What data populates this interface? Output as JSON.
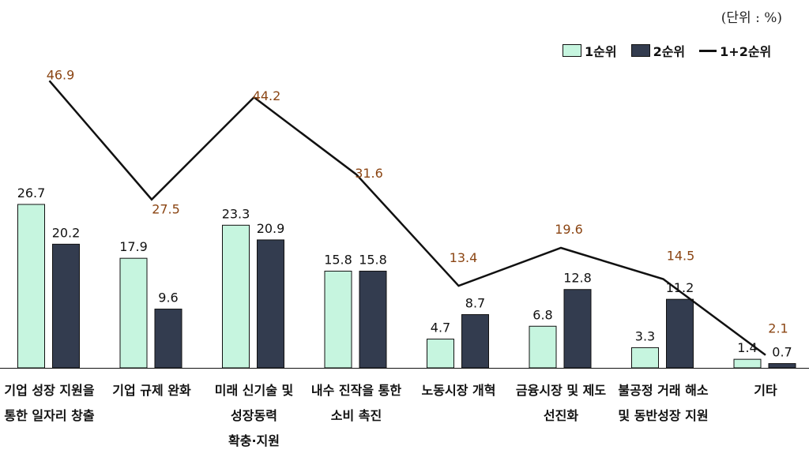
{
  "unit_label": "(단위 : %)",
  "colors": {
    "series1_fill": "#c6f5df",
    "series2_fill": "#333c4f",
    "line": "#111111",
    "line_label": "#8b4513",
    "text": "#111111"
  },
  "chart_data": {
    "type": "bar",
    "title": "",
    "xlabel": "",
    "ylabel": "",
    "legend_position": "top-right",
    "grid": false,
    "categories": [
      "기업 성장 지원을\n통한 일자리 창출",
      "기업 규제 완화",
      "미래 신기술 및\n성장동력\n확충·지원",
      "내수 진작을 통한\n소비 촉진",
      "노동시장 개혁",
      "금융시장 및 제도\n선진화",
      "불공정 거래 해소\n및 동반성장 지원",
      "기타"
    ],
    "series": [
      {
        "name": "1순위",
        "type": "bar",
        "values": [
          26.7,
          17.9,
          23.3,
          15.8,
          4.7,
          6.8,
          3.3,
          1.4
        ]
      },
      {
        "name": "2순위",
        "type": "bar",
        "values": [
          20.2,
          9.6,
          20.9,
          15.8,
          8.7,
          12.8,
          11.2,
          0.7
        ]
      },
      {
        "name": "1+2순위",
        "type": "line",
        "values": [
          46.9,
          27.5,
          44.2,
          31.6,
          13.4,
          19.6,
          14.5,
          2.1
        ]
      }
    ]
  }
}
